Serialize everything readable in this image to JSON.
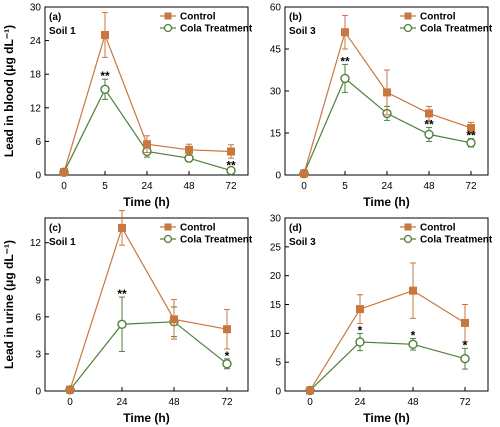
{
  "colors": {
    "control": "#C8773F",
    "cola": "#4E7F3A",
    "axis": "#000000"
  },
  "chart_data": [
    {
      "type": "line",
      "panel_label": "(a)",
      "soil": "Soil 1",
      "categories": [
        "0",
        "5",
        "24",
        "48",
        "72"
      ],
      "ylabel": "Lead in blood (μg dL⁻¹)",
      "xlabel": "Time (h)",
      "ylim": [
        0,
        30
      ],
      "yticks": [
        "0",
        "6",
        "12",
        "18",
        "24",
        "30"
      ],
      "legend_position": "top-right",
      "series": [
        {
          "name": "Control",
          "marker": "square",
          "values": [
            0.5,
            25.0,
            5.5,
            4.5,
            4.2
          ],
          "errors": [
            0.3,
            4.0,
            1.5,
            1.0,
            1.2
          ]
        },
        {
          "name": "Cola Treatment",
          "marker": "open-circle",
          "values": [
            0.5,
            15.3,
            4.2,
            3.0,
            0.8
          ],
          "errors": [
            0.3,
            1.8,
            1.0,
            0.6,
            0.4
          ]
        }
      ],
      "annotations": [
        {
          "category": "5",
          "text": "**"
        },
        {
          "category": "72",
          "text": "**"
        }
      ]
    },
    {
      "type": "line",
      "panel_label": "(b)",
      "soil": "Soil 3",
      "categories": [
        "0",
        "5",
        "24",
        "48",
        "72"
      ],
      "ylabel": "",
      "xlabel": "Time (h)",
      "ylim": [
        0,
        60
      ],
      "yticks": [
        "0",
        "15",
        "30",
        "45",
        "60"
      ],
      "legend_position": "top-right",
      "series": [
        {
          "name": "Control",
          "marker": "square",
          "values": [
            0.5,
            51.0,
            29.5,
            22.0,
            16.8
          ],
          "errors": [
            0.3,
            6.0,
            8.0,
            2.5,
            2.0
          ]
        },
        {
          "name": "Cola Treatment",
          "marker": "open-circle",
          "values": [
            0.5,
            34.5,
            22.0,
            14.5,
            11.5
          ],
          "errors": [
            0.3,
            5.0,
            2.5,
            2.5,
            1.5
          ]
        }
      ],
      "annotations": [
        {
          "category": "5",
          "text": "**"
        },
        {
          "category": "48",
          "text": "**"
        },
        {
          "category": "72",
          "text": "**"
        }
      ]
    },
    {
      "type": "line",
      "panel_label": "(c)",
      "soil": "Soil 1",
      "categories": [
        "0",
        "24",
        "48",
        "72"
      ],
      "ylabel": "Lead in urine (μg dL⁻¹)",
      "xlabel": "Time (h)",
      "ylim": [
        0,
        14
      ],
      "yticks": [
        "0",
        "3",
        "6",
        "9",
        "12"
      ],
      "legend_position": "top-right",
      "series": [
        {
          "name": "Control",
          "marker": "square",
          "values": [
            0.1,
            13.2,
            5.8,
            5.0
          ],
          "errors": [
            0.1,
            1.4,
            1.6,
            1.6
          ]
        },
        {
          "name": "Cola Treatment",
          "marker": "open-circle",
          "values": [
            0.1,
            5.4,
            5.6,
            2.2
          ],
          "errors": [
            0.1,
            2.2,
            1.2,
            0.4
          ]
        }
      ],
      "annotations": [
        {
          "category": "24",
          "text": "**"
        },
        {
          "category": "72",
          "text": "*"
        }
      ]
    },
    {
      "type": "line",
      "panel_label": "(d)",
      "soil": "Soil 3",
      "categories": [
        "0",
        "24",
        "48",
        "72"
      ],
      "ylabel": "",
      "xlabel": "Time (h)",
      "ylim": [
        0,
        30
      ],
      "yticks": [
        "0",
        "5",
        "10",
        "15",
        "20",
        "25",
        "30"
      ],
      "legend_position": "top-right",
      "series": [
        {
          "name": "Control",
          "marker": "square",
          "values": [
            0.1,
            14.2,
            17.4,
            11.8
          ],
          "errors": [
            0.1,
            2.5,
            4.8,
            3.2
          ]
        },
        {
          "name": "Cola Treatment",
          "marker": "open-circle",
          "values": [
            0.1,
            8.5,
            8.1,
            5.6
          ],
          "errors": [
            0.1,
            1.5,
            1.0,
            1.8
          ]
        }
      ],
      "annotations": [
        {
          "category": "24",
          "text": "*"
        },
        {
          "category": "48",
          "text": "*"
        },
        {
          "category": "72",
          "text": "*"
        }
      ]
    }
  ]
}
